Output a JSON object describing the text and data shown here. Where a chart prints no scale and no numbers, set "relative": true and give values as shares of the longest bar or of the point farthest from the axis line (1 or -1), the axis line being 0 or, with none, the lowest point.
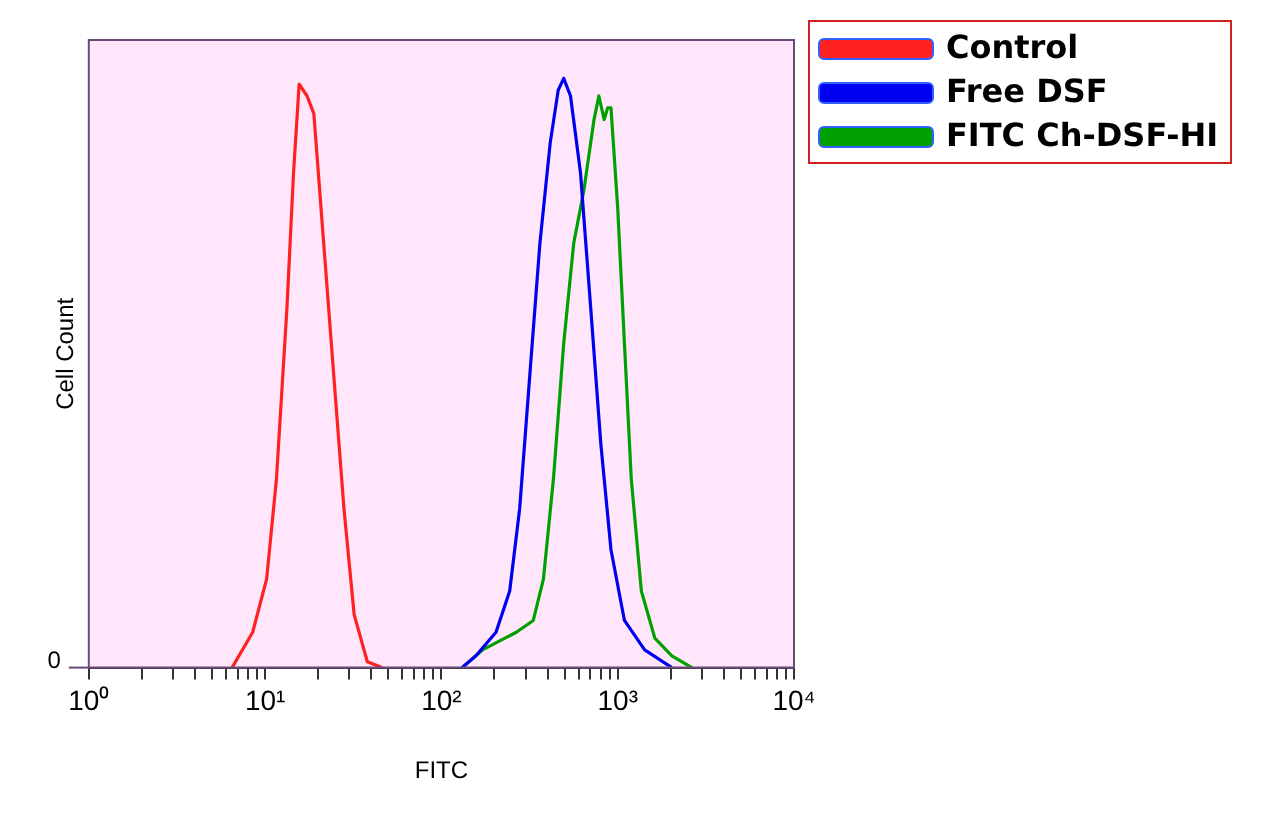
{
  "chart_data": {
    "type": "line",
    "xlabel": "FITC",
    "ylabel": "Cell Count",
    "log": "x",
    "relative": true,
    "legend": "right",
    "marker": "none",
    "line_style": "solid",
    "grid": false,
    "xlim": [
      1,
      10000
    ],
    "xticks": [
      {
        "value": 1,
        "label": "10⁰"
      },
      {
        "value": 2,
        "label": null
      },
      {
        "value": 3,
        "label": null
      },
      {
        "value": 4,
        "label": null
      },
      {
        "value": 5,
        "label": null
      },
      {
        "value": 6,
        "label": null
      },
      {
        "value": 7,
        "label": null
      },
      {
        "value": 8,
        "label": null
      },
      {
        "value": 9,
        "label": null
      },
      {
        "value": 10,
        "label": "10¹"
      },
      {
        "value": 20,
        "label": null
      },
      {
        "value": 30,
        "label": null
      },
      {
        "value": 40,
        "label": null
      },
      {
        "value": 50,
        "label": null
      },
      {
        "value": 60,
        "label": null
      },
      {
        "value": 70,
        "label": null
      },
      {
        "value": 80,
        "label": null
      },
      {
        "value": 90,
        "label": null
      },
      {
        "value": 100,
        "label": "10²"
      },
      {
        "value": 200,
        "label": null
      },
      {
        "value": 300,
        "label": null
      },
      {
        "value": 400,
        "label": null
      },
      {
        "value": 500,
        "label": null
      },
      {
        "value": 600,
        "label": null
      },
      {
        "value": 700,
        "label": null
      },
      {
        "value": 800,
        "label": null
      },
      {
        "value": 900,
        "label": null
      },
      {
        "value": 1000,
        "label": "10³"
      },
      {
        "value": 2000,
        "label": null
      },
      {
        "value": 3000,
        "label": null
      },
      {
        "value": 4000,
        "label": null
      },
      {
        "value": 5000,
        "label": null
      },
      {
        "value": 6000,
        "label": null
      },
      {
        "value": 7000,
        "label": null
      },
      {
        "value": 8000,
        "label": null
      },
      {
        "value": 9000,
        "label": null
      },
      {
        "value": 10000,
        "label": "10⁴"
      }
    ],
    "annotations": [
      "0"
    ],
    "series": [
      {
        "name": "Control",
        "color": "#ff2020",
        "x": [
          6.5,
          8.5,
          10.2,
          11.6,
          13.3,
          14.5,
          15.6,
          17.3,
          18.9,
          21.5,
          24.6,
          28,
          32,
          38,
          46
        ],
        "values": [
          0,
          0.06,
          0.15,
          0.32,
          0.61,
          0.84,
          0.99,
          0.97,
          0.94,
          0.72,
          0.49,
          0.27,
          0.09,
          0.01,
          0
        ]
      },
      {
        "name": "Free DSF",
        "color": "#0000f0",
        "x": [
          131,
          157,
          204,
          244,
          278,
          318,
          362,
          414,
          460,
          494,
          540,
          615,
          703,
          802,
          916,
          1092,
          1422,
          2028
        ],
        "values": [
          0,
          0.02,
          0.06,
          0.13,
          0.27,
          0.5,
          0.72,
          0.89,
          0.98,
          1,
          0.97,
          0.84,
          0.61,
          0.38,
          0.2,
          0.08,
          0.03,
          0
        ]
      },
      {
        "name": "FITC Ch-DSF-HI",
        "color": "#00a000",
        "x": [
          131,
          171,
          266,
          332,
          379,
          432,
          494,
          563,
          643,
          734,
          782,
          838,
          877,
          916,
          1000,
          1092,
          1194,
          1362,
          1624,
          2028,
          2637
        ],
        "values": [
          0,
          0.03,
          0.06,
          0.08,
          0.15,
          0.32,
          0.55,
          0.72,
          0.81,
          0.93,
          0.97,
          0.93,
          0.95,
          0.95,
          0.78,
          0.55,
          0.32,
          0.13,
          0.05,
          0.02,
          0
        ]
      }
    ]
  }
}
